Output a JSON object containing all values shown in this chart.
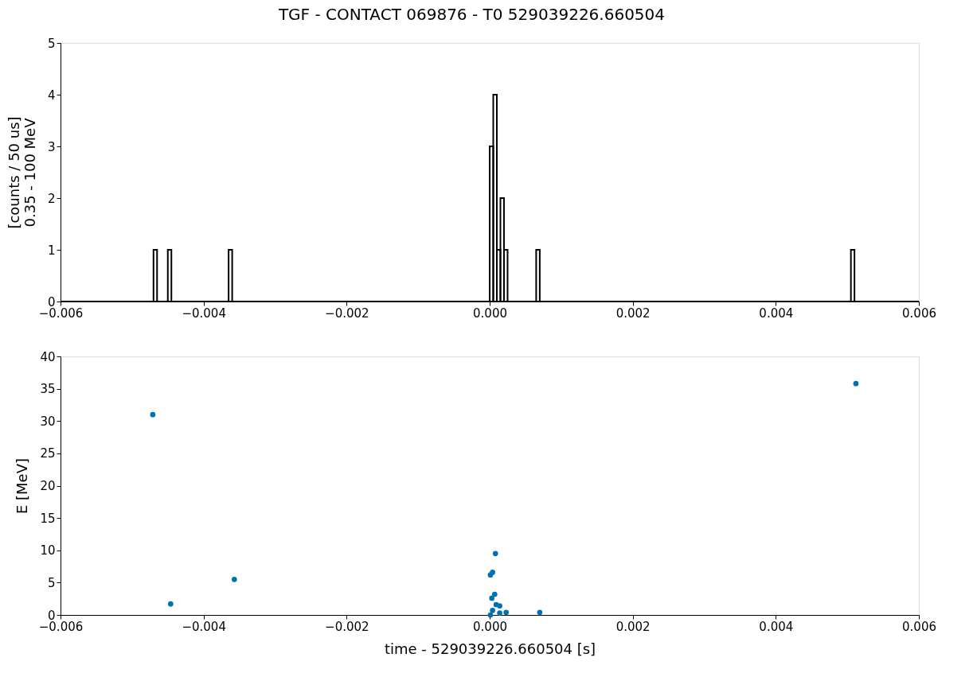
{
  "chart_data": [
    {
      "type": "histogram",
      "title": "TGF - CONTACT 069876 - T0 529039226.660504",
      "ylabel": "[counts / 50 us]\n0.35 - 100 MeV",
      "bins": [
        -0.006,
        -0.0047,
        -0.00465,
        -0.0045,
        -0.00445,
        -0.00365,
        -0.0036,
        0,
        5e-05,
        0.0001,
        0.00015,
        0.0002,
        0.00025,
        0.00065,
        0.0007,
        0.00505,
        0.0051,
        0.006
      ],
      "values": [
        0,
        1,
        0,
        1,
        0,
        1,
        0,
        3,
        4,
        1,
        2,
        1,
        0,
        1,
        0,
        1,
        0
      ],
      "color": "#000000",
      "xlim": [
        -0.006,
        0.006
      ],
      "xticks": [
        {
          "value": -0.006,
          "label": "−0.006"
        },
        {
          "value": -0.004,
          "label": "−0.004"
        },
        {
          "value": -0.002,
          "label": "−0.002"
        },
        {
          "value": 0,
          "label": "0.000"
        },
        {
          "value": 0.002,
          "label": "0.002"
        },
        {
          "value": 0.004,
          "label": "0.004"
        },
        {
          "value": 0.006,
          "label": "0.006"
        }
      ],
      "ylim": [
        0,
        5
      ],
      "yticks": [
        0,
        1,
        2,
        3,
        4,
        5
      ],
      "grid": false
    },
    {
      "type": "scatter",
      "xlabel": "time - 529039226.660504 [s]",
      "ylabel": "E [MeV]",
      "x": [
        -0.00471,
        -0.00446,
        -0.00357,
        0.00512,
        8e-05,
        4e-05,
        1e-05,
        7e-05,
        3e-05,
        9e-05,
        0.00014,
        4e-05,
        1e-05,
        0.00014,
        0.00023,
        0.0007
      ],
      "values": [
        31,
        1.7,
        5.5,
        35.8,
        9.5,
        6.6,
        6.2,
        3.2,
        2.6,
        1.6,
        1.4,
        0.7,
        0,
        0.3,
        0.4,
        0.4
      ],
      "color": "#0072b2",
      "marker": "circle",
      "xlim": [
        -0.006,
        0.006
      ],
      "xticks": [
        {
          "value": -0.006,
          "label": "−0.006"
        },
        {
          "value": -0.004,
          "label": "−0.004"
        },
        {
          "value": -0.002,
          "label": "−0.002"
        },
        {
          "value": 0,
          "label": "0.000"
        },
        {
          "value": 0.002,
          "label": "0.002"
        },
        {
          "value": 0.004,
          "label": "0.004"
        },
        {
          "value": 0.006,
          "label": "0.006"
        }
      ],
      "ylim": [
        0,
        40
      ],
      "yticks": [
        0,
        5,
        10,
        15,
        20,
        25,
        30,
        35,
        40
      ],
      "grid": false
    }
  ]
}
